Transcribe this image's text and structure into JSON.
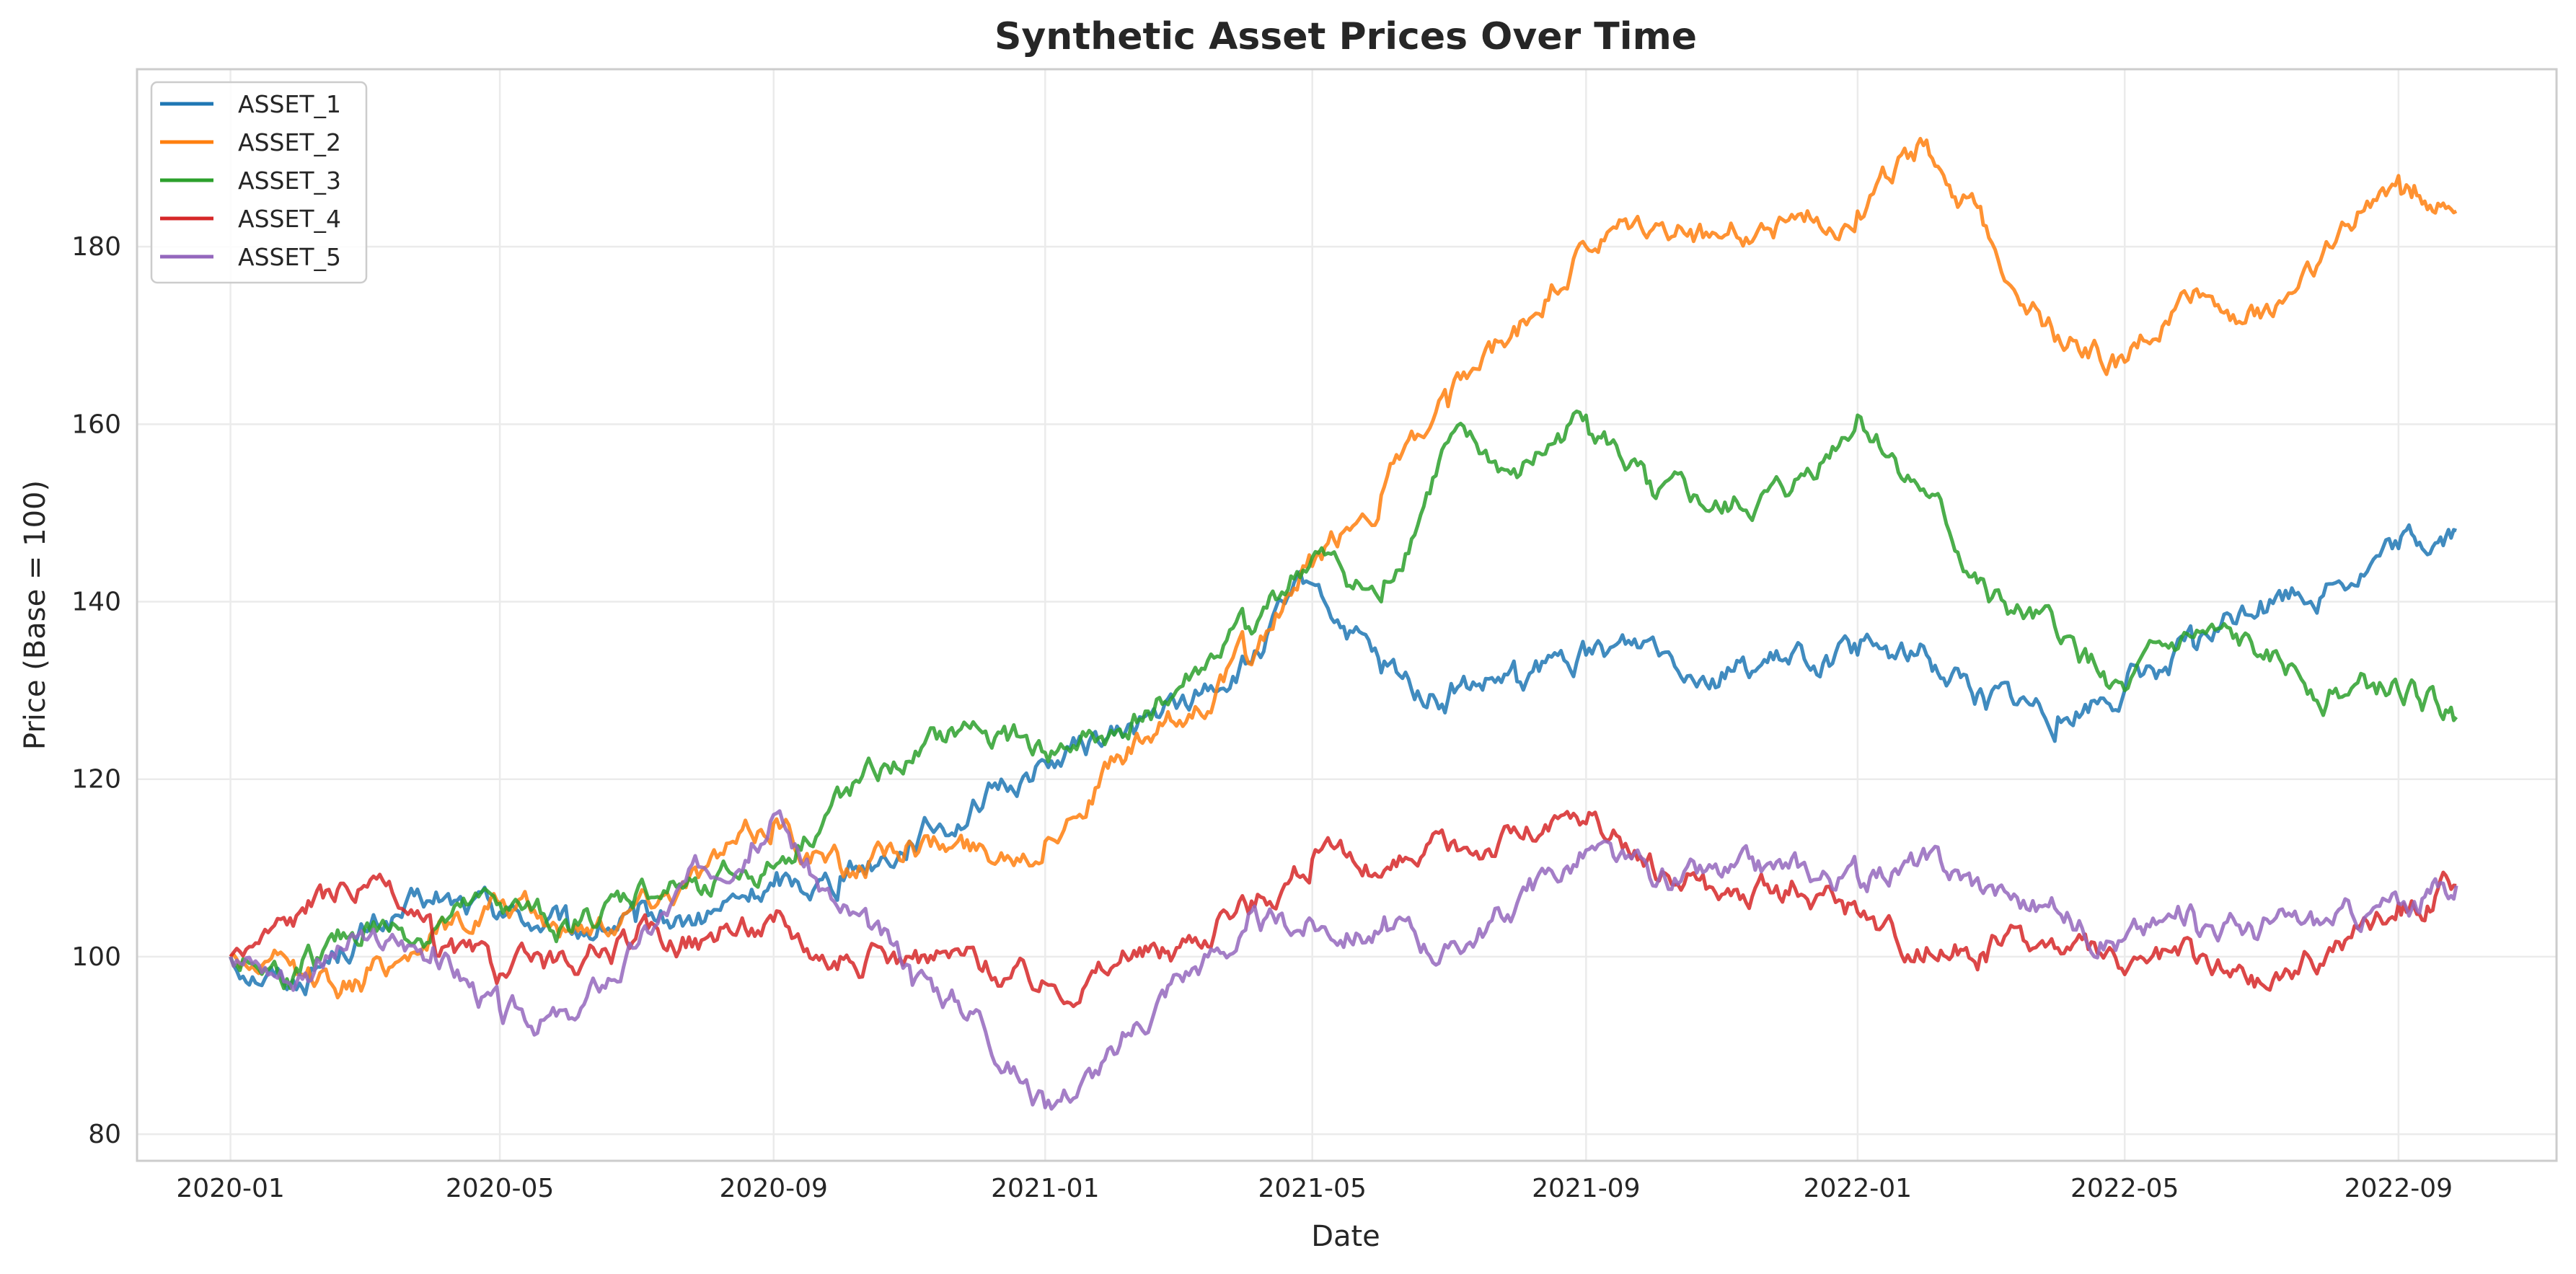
{
  "chart_data": {
    "type": "line",
    "title": "Synthetic Asset Prices Over Time",
    "xlabel": "Date",
    "ylabel": "Price (Base = 100)",
    "x_ticks": [
      "2020-01",
      "2020-05",
      "2020-09",
      "2021-01",
      "2021-05",
      "2021-09",
      "2022-01",
      "2022-05",
      "2022-09"
    ],
    "y_ticks": [
      80,
      100,
      120,
      140,
      160,
      180
    ],
    "xlim": [
      "2019-11-20",
      "2022-11-11"
    ],
    "ylim": [
      77,
      200
    ],
    "grid": true,
    "legend": "top-left",
    "x": [
      "2020-01-01",
      "2020-02-01",
      "2020-03-01",
      "2020-04-01",
      "2020-05-01",
      "2020-06-01",
      "2020-07-01",
      "2020-08-01",
      "2020-09-01",
      "2020-10-01",
      "2020-11-01",
      "2020-12-01",
      "2021-01-01",
      "2021-02-01",
      "2021-03-01",
      "2021-04-01",
      "2021-05-01",
      "2021-06-01",
      "2021-07-01",
      "2021-08-01",
      "2021-09-01",
      "2021-10-01",
      "2021-11-01",
      "2021-12-01",
      "2022-01-01",
      "2022-02-01",
      "2022-03-01",
      "2022-04-01",
      "2022-05-01",
      "2022-06-01",
      "2022-07-01",
      "2022-08-01",
      "2022-09-01",
      "2022-09-27"
    ],
    "series": [
      {
        "name": "ASSET_1",
        "color": "#1f77b4",
        "values": [
          100,
          97,
          103,
          106,
          105,
          103,
          104,
          104,
          108,
          109,
          113,
          117,
          122,
          125,
          128,
          133,
          142,
          132,
          129,
          131,
          134,
          136,
          132,
          133,
          134,
          134,
          129,
          127,
          130,
          135,
          140,
          142,
          146,
          148
        ]
      },
      {
        "name": "ASSET_2",
        "color": "#ff7f0e",
        "values": [
          100,
          98,
          97,
          103,
          106,
          103,
          106,
          110,
          115,
          110,
          113,
          112,
          113,
          122,
          126,
          134,
          144,
          152,
          162,
          170,
          180,
          182,
          181,
          183,
          184,
          192,
          181,
          170,
          167,
          175,
          172,
          180,
          188,
          184
        ]
      },
      {
        "name": "ASSET_3",
        "color": "#2ca02c",
        "values": [
          100,
          98,
          103,
          103,
          106,
          103,
          107,
          108,
          110,
          118,
          122,
          126,
          123,
          125,
          130,
          137,
          145,
          140,
          158,
          154,
          161,
          152,
          150,
          152,
          161,
          152,
          140,
          136,
          130,
          136,
          134,
          130,
          130,
          127
        ]
      },
      {
        "name": "ASSET_4",
        "color": "#d62728",
        "values": [
          100,
          105,
          108,
          102,
          98,
          99,
          102,
          102,
          104,
          100,
          100,
          100,
          97,
          99,
          101,
          106,
          111,
          109,
          112,
          114,
          115,
          110,
          107,
          107,
          105,
          101,
          101,
          101,
          98,
          100,
          97,
          101,
          106,
          108
        ]
      },
      {
        "name": "ASSET_5",
        "color": "#9467bd",
        "values": [
          100,
          98,
          102,
          101,
          94,
          93,
          101,
          110,
          116,
          105,
          99,
          94,
          83,
          89,
          98,
          103,
          104,
          103,
          101,
          106,
          112,
          108,
          109,
          110,
          109,
          111,
          108,
          105,
          102,
          105,
          103,
          104,
          106,
          108
        ]
      }
    ]
  }
}
